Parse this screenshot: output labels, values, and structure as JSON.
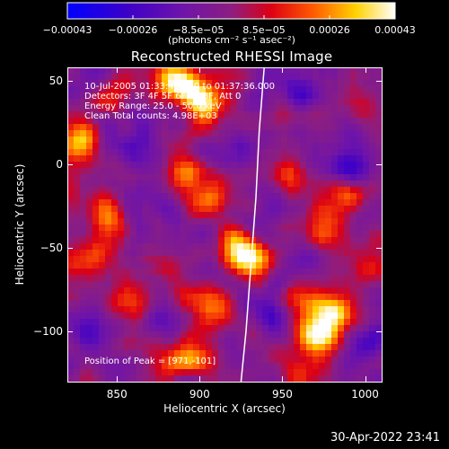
{
  "chart_data": {
    "type": "heatmap",
    "title": "Reconstructed RHESSI Image",
    "xlabel": "Heliocentric X (arcsec)",
    "ylabel": "Heliocentric Y (arcsec)",
    "xlim": [
      820,
      1010
    ],
    "ylim": [
      -130,
      58
    ],
    "x_ticks": [
      850,
      900,
      950,
      1000
    ],
    "x_tick_labels": [
      "850",
      "900",
      "950",
      "1000"
    ],
    "y_ticks": [
      50,
      0,
      -50,
      -100
    ],
    "y_tick_labels": [
      "50",
      "0",
      "−50",
      "−100"
    ],
    "colorbar": {
      "range": [
        -0.00043,
        0.00043
      ],
      "tick_labels": [
        "−0.00043",
        "−0.00026",
        "−8.5e−05",
        "8.5e−05",
        "0.00026",
        "0.00043"
      ],
      "units": "(photons cm⁻² s⁻¹ asec⁻²)"
    },
    "annotations": [
      "10-Jul-2005 01:33:48.000 to 01:37:36.000",
      "Detectors: 3F 4F 5F 6F 7F 8F, Att 0",
      "Energy Range: 25.0 - 50.0 keV",
      "Clean    Total counts: 4.98E+03"
    ],
    "peak_label": "Position of Peak = [971,-101]",
    "limb_curve": [
      [
        939,
        58
      ],
      [
        936,
        20
      ],
      [
        934,
        -20
      ],
      [
        931,
        -60
      ],
      [
        928,
        -100
      ],
      [
        925,
        -130
      ]
    ],
    "hot_spots": [
      {
        "x": 905,
        "y": 35,
        "value": 0.00043
      },
      {
        "x": 893,
        "y": 48,
        "value": 0.00035
      },
      {
        "x": 880,
        "y": 52,
        "value": 0.0003
      },
      {
        "x": 930,
        "y": -58,
        "value": 0.0004
      },
      {
        "x": 920,
        "y": -48,
        "value": 0.00028
      },
      {
        "x": 905,
        "y": -20,
        "value": 0.00026
      },
      {
        "x": 890,
        "y": -5,
        "value": 0.00022
      },
      {
        "x": 910,
        "y": -85,
        "value": 0.00026
      },
      {
        "x": 893,
        "y": -75,
        "value": 0.00015
      },
      {
        "x": 971,
        "y": -101,
        "value": 0.00043
      },
      {
        "x": 985,
        "y": -90,
        "value": 0.0003
      },
      {
        "x": 965,
        "y": -80,
        "value": 0.00025
      },
      {
        "x": 960,
        "y": -125,
        "value": 0.00022
      },
      {
        "x": 895,
        "y": -115,
        "value": 0.00035
      },
      {
        "x": 880,
        "y": -120,
        "value": 0.00015
      },
      {
        "x": 845,
        "y": -30,
        "value": 0.0003
      },
      {
        "x": 835,
        "y": -55,
        "value": 0.00022
      },
      {
        "x": 826,
        "y": 15,
        "value": 0.00035
      },
      {
        "x": 846,
        "y": 40,
        "value": 0.0002
      },
      {
        "x": 860,
        "y": -80,
        "value": 0.0002
      },
      {
        "x": 975,
        "y": -40,
        "value": 0.00022
      },
      {
        "x": 990,
        "y": -20,
        "value": 0.0002
      },
      {
        "x": 960,
        "y": 30,
        "value": 0.00015
      },
      {
        "x": 1000,
        "y": 35,
        "value": 0.00012
      },
      {
        "x": 955,
        "y": -5,
        "value": 0.00018
      },
      {
        "x": 1005,
        "y": -60,
        "value": 0.00015
      }
    ],
    "cold_spots": [
      {
        "x": 960,
        "y": 40,
        "value": -0.00026
      },
      {
        "x": 990,
        "y": 0,
        "value": -0.00026
      },
      {
        "x": 875,
        "y": -95,
        "value": -0.0002
      },
      {
        "x": 940,
        "y": -90,
        "value": -0.0002
      },
      {
        "x": 1000,
        "y": -110,
        "value": -0.00022
      },
      {
        "x": 855,
        "y": 10,
        "value": -0.00018
      },
      {
        "x": 830,
        "y": -100,
        "value": -0.0002
      },
      {
        "x": 925,
        "y": 10,
        "value": -0.00015
      }
    ]
  },
  "timestamp": "30-Apr-2022 23:41"
}
